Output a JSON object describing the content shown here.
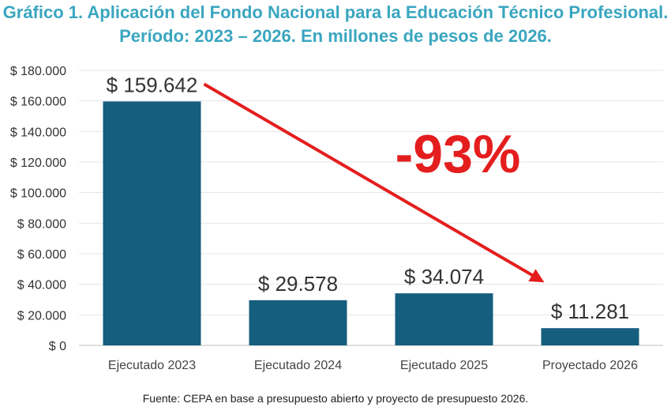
{
  "title_line1": "Gráfico 1. Aplicación del Fondo Nacional para la Educación Técnico Profesional.",
  "title_line2": "Período: 2023 – 2026. En millones de pesos de 2026.",
  "source": "Fuente: CEPA en base a presupuesto abierto y proyecto de presupuesto 2026.",
  "colors": {
    "bar": "#155e7e",
    "title": "#3aa6bf",
    "arrow": "#e41e1e",
    "grid": "#e4e4e4"
  },
  "chart_data": {
    "type": "bar",
    "categories": [
      "Ejecutado 2023",
      "Ejecutado 2024",
      "Ejecutado 2025",
      "Proyectado 2026"
    ],
    "values": [
      159642,
      29578,
      34074,
      11281
    ],
    "data_labels": [
      "$ 159.642",
      "$ 29.578",
      "$ 34.074",
      "$ 11.281"
    ],
    "ylim": [
      0,
      180000
    ],
    "y_ticks": [
      0,
      20000,
      40000,
      60000,
      80000,
      100000,
      120000,
      140000,
      160000,
      180000
    ],
    "y_tick_labels": [
      "$ 0",
      "$ 20.000",
      "$ 40.000",
      "$ 60.000",
      "$ 80.000",
      "$ 100.000",
      "$ 120.000",
      "$ 140.000",
      "$ 160.000",
      "$ 180.000"
    ],
    "grid": true,
    "annotation": {
      "text": "-93%",
      "from_category": "Ejecutado 2023",
      "to_category": "Proyectado 2026"
    }
  }
}
